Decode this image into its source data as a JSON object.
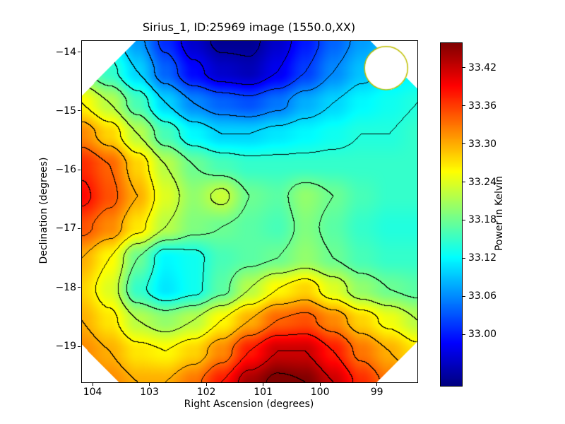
{
  "chart_data": {
    "type": "heatmap",
    "title": "Sirius_1, ID:25969 image (1550.0,XX)",
    "xlabel": "Right Ascension (degrees)",
    "ylabel": "Declination (degrees)",
    "x_range": [
      104.2,
      98.3
    ],
    "y_range": [
      -13.8,
      -19.6
    ],
    "x_ticks": [
      "104",
      "103",
      "102",
      "101",
      "100",
      "99"
    ],
    "y_ticks": [
      "−14",
      "−15",
      "−16",
      "−17",
      "−18",
      "−19"
    ],
    "x": [
      104.2,
      103.71,
      103.22,
      102.72,
      102.23,
      101.74,
      101.25,
      100.76,
      100.27,
      99.78,
      99.28,
      98.79,
      98.3
    ],
    "y": [
      -13.8,
      -14.33,
      -14.85,
      -15.38,
      -15.91,
      -16.44,
      -16.96,
      -17.49,
      -18.02,
      -18.55,
      -19.07,
      -19.6
    ],
    "values": [
      [
        33.15,
        33.12,
        33.07,
        33.01,
        32.96,
        32.93,
        32.93,
        32.96,
        33.0,
        33.04,
        33.07,
        33.09,
        33.1
      ],
      [
        33.19,
        33.15,
        33.1,
        33.04,
        32.99,
        32.96,
        32.95,
        32.98,
        33.02,
        33.06,
        33.09,
        33.11,
        33.12
      ],
      [
        33.26,
        33.22,
        33.16,
        33.1,
        33.06,
        33.04,
        33.03,
        33.05,
        33.08,
        33.1,
        33.12,
        33.13,
        33.14
      ],
      [
        33.32,
        33.28,
        33.22,
        33.16,
        33.12,
        33.1,
        33.1,
        33.11,
        33.12,
        33.13,
        33.14,
        33.14,
        33.15
      ],
      [
        33.37,
        33.34,
        33.28,
        33.22,
        33.18,
        33.16,
        33.15,
        33.15,
        33.15,
        33.15,
        33.15,
        33.15,
        33.15
      ],
      [
        33.39,
        33.35,
        33.3,
        33.24,
        33.2,
        33.23,
        33.18,
        33.17,
        33.2,
        33.18,
        33.16,
        33.15,
        33.15
      ],
      [
        33.35,
        33.32,
        33.27,
        33.22,
        33.19,
        33.18,
        33.17,
        33.16,
        33.19,
        33.17,
        33.15,
        33.14,
        33.14
      ],
      [
        33.3,
        33.26,
        33.18,
        33.12,
        33.13,
        33.16,
        33.17,
        33.18,
        33.2,
        33.18,
        33.16,
        33.15,
        33.15
      ],
      [
        33.28,
        33.24,
        33.15,
        33.11,
        33.13,
        33.17,
        33.22,
        33.26,
        33.28,
        33.24,
        33.2,
        33.18,
        33.17
      ],
      [
        33.3,
        33.27,
        33.22,
        33.2,
        33.22,
        33.26,
        33.3,
        33.34,
        33.35,
        33.32,
        33.28,
        33.25,
        33.22
      ],
      [
        33.32,
        33.3,
        33.27,
        33.26,
        33.28,
        33.32,
        33.38,
        33.42,
        33.42,
        33.38,
        33.33,
        33.3,
        33.27
      ],
      [
        33.34,
        33.32,
        33.3,
        33.3,
        33.33,
        33.38,
        33.44,
        33.47,
        33.46,
        33.42,
        33.37,
        33.33,
        33.3
      ]
    ],
    "contour_base": 32.9,
    "contour_step": 0.04,
    "contour_color": "#000000",
    "colormap": "jet",
    "mask": "octagon-corners-white",
    "colorbar": {
      "label": "Power in Kelvin",
      "ticks": [
        "33.42",
        "33.36",
        "33.30",
        "33.24",
        "33.18",
        "33.12",
        "33.06",
        "33.00"
      ],
      "vmin": 32.92,
      "vmax": 33.46
    },
    "annotations": [
      {
        "type": "circle",
        "x": 98.85,
        "y": -14.26,
        "radius_deg": 0.38,
        "color": "#bfbf00",
        "fill": "white"
      }
    ]
  }
}
